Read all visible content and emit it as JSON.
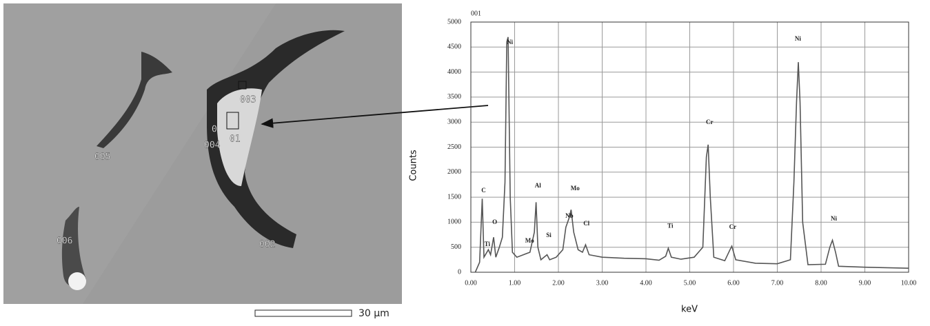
{
  "sem_image": {
    "labels": [
      "003",
      "01",
      "0",
      "004",
      "005",
      "006",
      "002"
    ],
    "scale_bar": "30 μm"
  },
  "chart_data": {
    "type": "line",
    "title": "001",
    "x_label": "keV",
    "y_label": "Counts",
    "color": "#555555",
    "grid": true,
    "xlim": [
      0,
      10
    ],
    "ylim": [
      0,
      5000
    ],
    "xticks": [
      {
        "value": 0,
        "label": "0.00"
      },
      {
        "value": 1,
        "label": "1.00"
      },
      {
        "value": 2,
        "label": "2.00"
      },
      {
        "value": 3,
        "label": "3.00"
      },
      {
        "value": 4,
        "label": "4.00"
      },
      {
        "value": 5,
        "label": "5.00"
      },
      {
        "value": 6,
        "label": "6.00"
      },
      {
        "value": 7,
        "label": "7.00"
      },
      {
        "value": 8,
        "label": "8.00"
      },
      {
        "value": 9,
        "label": "9.00"
      },
      {
        "value": 10,
        "label": "10.00"
      }
    ],
    "yticks": [
      0,
      500,
      1000,
      1500,
      2000,
      2500,
      3000,
      3500,
      4000,
      4500,
      5000
    ],
    "x": [
      0.1,
      0.2,
      0.26,
      0.3,
      0.4,
      0.45,
      0.52,
      0.57,
      0.65,
      0.72,
      0.78,
      0.82,
      0.85,
      0.9,
      0.95,
      1.05,
      1.2,
      1.35,
      1.45,
      1.49,
      1.53,
      1.6,
      1.74,
      1.8,
      1.95,
      2.1,
      2.17,
      2.25,
      2.29,
      2.35,
      2.45,
      2.55,
      2.62,
      2.7,
      3.0,
      3.5,
      4.0,
      4.3,
      4.45,
      4.51,
      4.58,
      4.8,
      5.1,
      5.3,
      5.38,
      5.42,
      5.47,
      5.55,
      5.8,
      5.92,
      5.96,
      6.05,
      6.5,
      7.0,
      7.3,
      7.38,
      7.44,
      7.48,
      7.52,
      7.58,
      7.7,
      8.1,
      8.2,
      8.26,
      8.33,
      8.4,
      9.0,
      10.0
    ],
    "values": [
      0,
      200,
      1470,
      300,
      450,
      350,
      700,
      300,
      500,
      700,
      1800,
      4600,
      4700,
      1500,
      400,
      300,
      350,
      400,
      800,
      1400,
      500,
      250,
      350,
      250,
      300,
      450,
      900,
      1100,
      1250,
      800,
      450,
      400,
      550,
      350,
      300,
      280,
      270,
      240,
      320,
      480,
      300,
      260,
      300,
      500,
      2300,
      2550,
      1500,
      300,
      230,
      450,
      520,
      250,
      180,
      170,
      250,
      1800,
      3400,
      4200,
      3400,
      1000,
      150,
      160,
      500,
      640,
      400,
      120,
      100,
      80
    ],
    "annotations": [
      {
        "text": "C",
        "x": 0.24,
        "y": 1625
      },
      {
        "text": "Ti",
        "x": 0.31,
        "y": 550
      },
      {
        "text": "O",
        "x": 0.49,
        "y": 990
      },
      {
        "text": "Ni",
        "x": 0.82,
        "y": 4590
      },
      {
        "text": "Mo",
        "x": 1.24,
        "y": 620
      },
      {
        "text": "Al",
        "x": 1.46,
        "y": 1720
      },
      {
        "text": "Si",
        "x": 1.72,
        "y": 730
      },
      {
        "text": "Nb",
        "x": 2.16,
        "y": 1115
      },
      {
        "text": "Mo",
        "x": 2.28,
        "y": 1670
      },
      {
        "text": "Cl",
        "x": 2.57,
        "y": 965
      },
      {
        "text": "Ti",
        "x": 4.49,
        "y": 920
      },
      {
        "text": "Cr",
        "x": 5.37,
        "y": 2990
      },
      {
        "text": "Cr",
        "x": 5.9,
        "y": 895
      },
      {
        "text": "Ni",
        "x": 7.4,
        "y": 4655
      },
      {
        "text": "Ni",
        "x": 8.22,
        "y": 1060
      }
    ]
  }
}
